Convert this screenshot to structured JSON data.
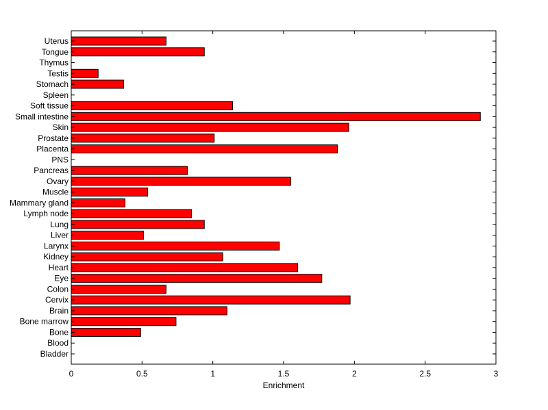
{
  "chart_data": {
    "type": "bar",
    "orientation": "horizontal",
    "title": "",
    "xlabel": "Enrichment",
    "ylabel": "",
    "xlim": [
      0,
      3
    ],
    "xticks": [
      "0",
      "0.5",
      "1",
      "1.5",
      "2",
      "2.5",
      "3"
    ],
    "grid": false,
    "bar_color": "#ff0000",
    "categories": [
      "Bladder",
      "Blood",
      "Bone",
      "Bone marrow",
      "Brain",
      "Cervix",
      "Colon",
      "Eye",
      "Heart",
      "Kidney",
      "Larynx",
      "Liver",
      "Lung",
      "Lymph node",
      "Mammary gland",
      "Muscle",
      "Ovary",
      "Pancreas",
      "PNS",
      "Placenta",
      "Prostate",
      "Skin",
      "Small intestine",
      "Soft tissue",
      "Spleen",
      "Stomach",
      "Testis",
      "Thymus",
      "Tongue",
      "Uterus"
    ],
    "values": [
      0,
      0,
      0.49,
      0.74,
      1.1,
      1.97,
      0.67,
      1.77,
      1.6,
      1.07,
      1.47,
      0.51,
      0.94,
      0.85,
      0.38,
      0.54,
      1.55,
      0.82,
      0,
      1.88,
      1.01,
      1.96,
      2.89,
      1.14,
      0,
      0.37,
      0.19,
      0,
      0.94,
      0.67
    ]
  }
}
